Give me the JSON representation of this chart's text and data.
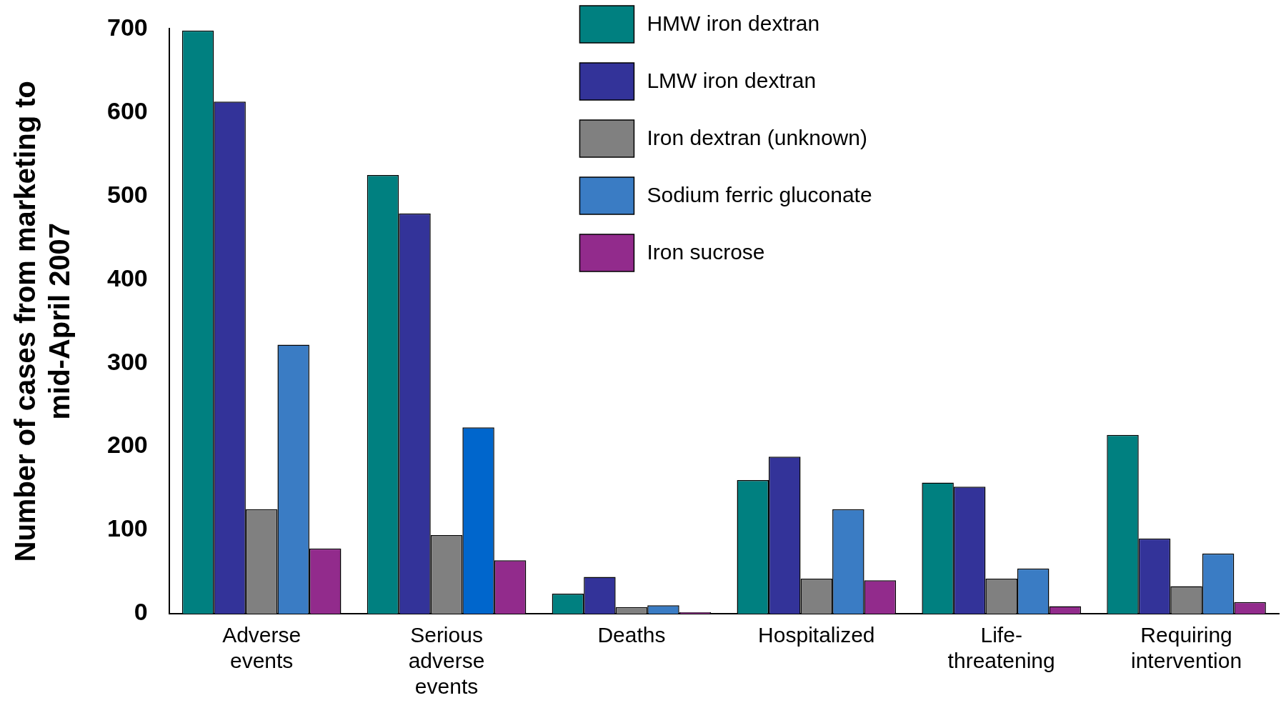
{
  "chart_data": {
    "type": "bar",
    "ylabel": "Number of cases from marketing to mid-April 2007",
    "categories": [
      "Adverse events",
      "Serious adverse events",
      "Deaths",
      "Hospitalized",
      "Life-threatening",
      "Requiring intervention"
    ],
    "series": [
      {
        "name": "HMW iron dextran",
        "color": "#008080",
        "values": [
          698,
          525,
          24,
          160,
          157,
          214
        ]
      },
      {
        "name": "LMW iron dextran",
        "color": "#333399",
        "values": [
          613,
          479,
          44,
          188,
          152,
          90
        ]
      },
      {
        "name": "Iron dextran (unknown)",
        "color": "#808080",
        "values": [
          125,
          94,
          8,
          42,
          42,
          33
        ]
      },
      {
        "name": "Sodium ferric gluconate",
        "color": "#3a7cc4",
        "colors": [
          "#3a7cc4",
          "#0066cc",
          "#3a7cc4",
          "#3a7cc4",
          "#3a7cc4",
          "#3a7cc4"
        ],
        "values": [
          322,
          223,
          10,
          125,
          54,
          72
        ]
      },
      {
        "name": "Iron sucrose",
        "color": "#922b8c",
        "values": [
          78,
          64,
          2,
          40,
          9,
          14
        ]
      }
    ],
    "ylim": [
      0,
      700
    ],
    "yticks": [
      0,
      100,
      200,
      300,
      400,
      500,
      600,
      700
    ],
    "grid": false,
    "legend": "top"
  }
}
